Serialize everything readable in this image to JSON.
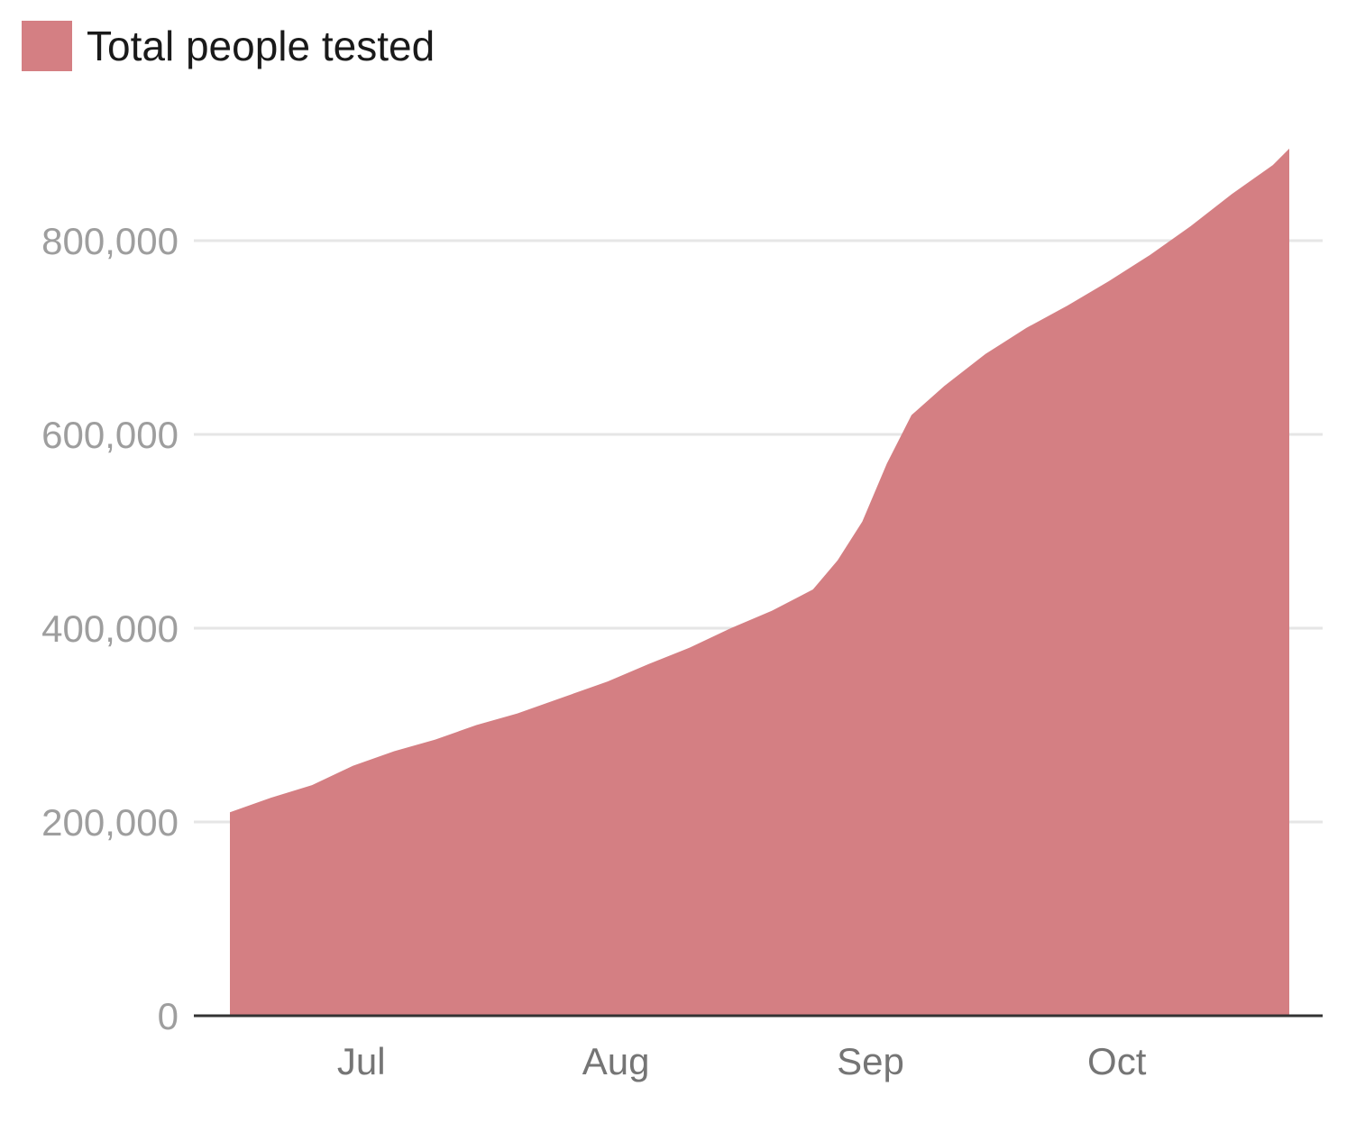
{
  "legend": {
    "label": "Total people tested"
  },
  "colors": {
    "area": "#d47f83",
    "grid": "#e6e6e6",
    "axis": "#333333",
    "ytick": "#9e9e9e",
    "xtick": "#757575"
  },
  "chart_data": {
    "type": "area",
    "title": "",
    "xlabel": "",
    "ylabel": "",
    "ylim": [
      0,
      900000
    ],
    "yticks": [
      0,
      200000,
      400000,
      600000,
      800000
    ],
    "ytick_labels": [
      "0",
      "200,000",
      "400,000",
      "600,000",
      "800,000"
    ],
    "xticks": [
      {
        "date": "2020-07-01",
        "label": "Jul"
      },
      {
        "date": "2020-08-01",
        "label": "Aug"
      },
      {
        "date": "2020-09-01",
        "label": "Sep"
      },
      {
        "date": "2020-10-01",
        "label": "Oct"
      }
    ],
    "grid": true,
    "series": [
      {
        "name": "Total people tested",
        "points": [
          [
            "2020-06-15",
            210000
          ],
          [
            "2020-06-20",
            225000
          ],
          [
            "2020-06-25",
            238000
          ],
          [
            "2020-06-30",
            258000
          ],
          [
            "2020-07-05",
            273000
          ],
          [
            "2020-07-10",
            285000
          ],
          [
            "2020-07-15",
            300000
          ],
          [
            "2020-07-20",
            312000
          ],
          [
            "2020-07-25",
            327000
          ],
          [
            "2020-07-31",
            345000
          ],
          [
            "2020-08-05",
            363000
          ],
          [
            "2020-08-10",
            380000
          ],
          [
            "2020-08-15",
            400000
          ],
          [
            "2020-08-20",
            418000
          ],
          [
            "2020-08-25",
            440000
          ],
          [
            "2020-08-28",
            470000
          ],
          [
            "2020-08-31",
            510000
          ],
          [
            "2020-09-03",
            570000
          ],
          [
            "2020-09-06",
            620000
          ],
          [
            "2020-09-10",
            650000
          ],
          [
            "2020-09-15",
            683000
          ],
          [
            "2020-09-20",
            710000
          ],
          [
            "2020-09-25",
            733000
          ],
          [
            "2020-09-30",
            758000
          ],
          [
            "2020-10-05",
            785000
          ],
          [
            "2020-10-10",
            815000
          ],
          [
            "2020-10-15",
            848000
          ],
          [
            "2020-10-20",
            878000
          ],
          [
            "2020-10-22",
            895000
          ]
        ]
      }
    ]
  }
}
